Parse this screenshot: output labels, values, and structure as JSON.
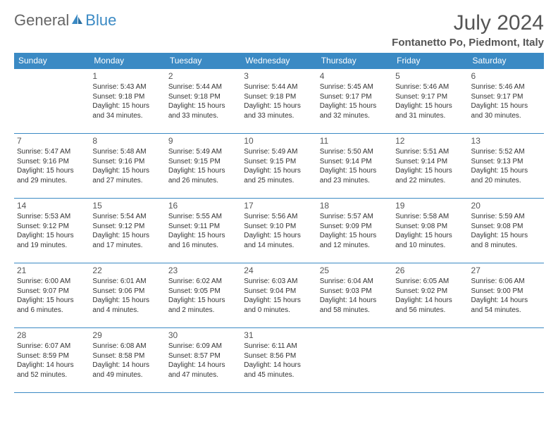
{
  "brand": {
    "part1": "General",
    "part2": "Blue"
  },
  "title": "July 2024",
  "location": "Fontanetto Po, Piedmont, Italy",
  "colors": {
    "accent": "#3b8ac4",
    "text": "#333333",
    "heading": "#555555",
    "background": "#ffffff"
  },
  "weekdays": [
    "Sunday",
    "Monday",
    "Tuesday",
    "Wednesday",
    "Thursday",
    "Friday",
    "Saturday"
  ],
  "weeks": [
    [
      null,
      {
        "d": "1",
        "sr": "Sunrise: 5:43 AM",
        "ss": "Sunset: 9:18 PM",
        "dl1": "Daylight: 15 hours",
        "dl2": "and 34 minutes."
      },
      {
        "d": "2",
        "sr": "Sunrise: 5:44 AM",
        "ss": "Sunset: 9:18 PM",
        "dl1": "Daylight: 15 hours",
        "dl2": "and 33 minutes."
      },
      {
        "d": "3",
        "sr": "Sunrise: 5:44 AM",
        "ss": "Sunset: 9:18 PM",
        "dl1": "Daylight: 15 hours",
        "dl2": "and 33 minutes."
      },
      {
        "d": "4",
        "sr": "Sunrise: 5:45 AM",
        "ss": "Sunset: 9:17 PM",
        "dl1": "Daylight: 15 hours",
        "dl2": "and 32 minutes."
      },
      {
        "d": "5",
        "sr": "Sunrise: 5:46 AM",
        "ss": "Sunset: 9:17 PM",
        "dl1": "Daylight: 15 hours",
        "dl2": "and 31 minutes."
      },
      {
        "d": "6",
        "sr": "Sunrise: 5:46 AM",
        "ss": "Sunset: 9:17 PM",
        "dl1": "Daylight: 15 hours",
        "dl2": "and 30 minutes."
      }
    ],
    [
      {
        "d": "7",
        "sr": "Sunrise: 5:47 AM",
        "ss": "Sunset: 9:16 PM",
        "dl1": "Daylight: 15 hours",
        "dl2": "and 29 minutes."
      },
      {
        "d": "8",
        "sr": "Sunrise: 5:48 AM",
        "ss": "Sunset: 9:16 PM",
        "dl1": "Daylight: 15 hours",
        "dl2": "and 27 minutes."
      },
      {
        "d": "9",
        "sr": "Sunrise: 5:49 AM",
        "ss": "Sunset: 9:15 PM",
        "dl1": "Daylight: 15 hours",
        "dl2": "and 26 minutes."
      },
      {
        "d": "10",
        "sr": "Sunrise: 5:49 AM",
        "ss": "Sunset: 9:15 PM",
        "dl1": "Daylight: 15 hours",
        "dl2": "and 25 minutes."
      },
      {
        "d": "11",
        "sr": "Sunrise: 5:50 AM",
        "ss": "Sunset: 9:14 PM",
        "dl1": "Daylight: 15 hours",
        "dl2": "and 23 minutes."
      },
      {
        "d": "12",
        "sr": "Sunrise: 5:51 AM",
        "ss": "Sunset: 9:14 PM",
        "dl1": "Daylight: 15 hours",
        "dl2": "and 22 minutes."
      },
      {
        "d": "13",
        "sr": "Sunrise: 5:52 AM",
        "ss": "Sunset: 9:13 PM",
        "dl1": "Daylight: 15 hours",
        "dl2": "and 20 minutes."
      }
    ],
    [
      {
        "d": "14",
        "sr": "Sunrise: 5:53 AM",
        "ss": "Sunset: 9:12 PM",
        "dl1": "Daylight: 15 hours",
        "dl2": "and 19 minutes."
      },
      {
        "d": "15",
        "sr": "Sunrise: 5:54 AM",
        "ss": "Sunset: 9:12 PM",
        "dl1": "Daylight: 15 hours",
        "dl2": "and 17 minutes."
      },
      {
        "d": "16",
        "sr": "Sunrise: 5:55 AM",
        "ss": "Sunset: 9:11 PM",
        "dl1": "Daylight: 15 hours",
        "dl2": "and 16 minutes."
      },
      {
        "d": "17",
        "sr": "Sunrise: 5:56 AM",
        "ss": "Sunset: 9:10 PM",
        "dl1": "Daylight: 15 hours",
        "dl2": "and 14 minutes."
      },
      {
        "d": "18",
        "sr": "Sunrise: 5:57 AM",
        "ss": "Sunset: 9:09 PM",
        "dl1": "Daylight: 15 hours",
        "dl2": "and 12 minutes."
      },
      {
        "d": "19",
        "sr": "Sunrise: 5:58 AM",
        "ss": "Sunset: 9:08 PM",
        "dl1": "Daylight: 15 hours",
        "dl2": "and 10 minutes."
      },
      {
        "d": "20",
        "sr": "Sunrise: 5:59 AM",
        "ss": "Sunset: 9:08 PM",
        "dl1": "Daylight: 15 hours",
        "dl2": "and 8 minutes."
      }
    ],
    [
      {
        "d": "21",
        "sr": "Sunrise: 6:00 AM",
        "ss": "Sunset: 9:07 PM",
        "dl1": "Daylight: 15 hours",
        "dl2": "and 6 minutes."
      },
      {
        "d": "22",
        "sr": "Sunrise: 6:01 AM",
        "ss": "Sunset: 9:06 PM",
        "dl1": "Daylight: 15 hours",
        "dl2": "and 4 minutes."
      },
      {
        "d": "23",
        "sr": "Sunrise: 6:02 AM",
        "ss": "Sunset: 9:05 PM",
        "dl1": "Daylight: 15 hours",
        "dl2": "and 2 minutes."
      },
      {
        "d": "24",
        "sr": "Sunrise: 6:03 AM",
        "ss": "Sunset: 9:04 PM",
        "dl1": "Daylight: 15 hours",
        "dl2": "and 0 minutes."
      },
      {
        "d": "25",
        "sr": "Sunrise: 6:04 AM",
        "ss": "Sunset: 9:03 PM",
        "dl1": "Daylight: 14 hours",
        "dl2": "and 58 minutes."
      },
      {
        "d": "26",
        "sr": "Sunrise: 6:05 AM",
        "ss": "Sunset: 9:02 PM",
        "dl1": "Daylight: 14 hours",
        "dl2": "and 56 minutes."
      },
      {
        "d": "27",
        "sr": "Sunrise: 6:06 AM",
        "ss": "Sunset: 9:00 PM",
        "dl1": "Daylight: 14 hours",
        "dl2": "and 54 minutes."
      }
    ],
    [
      {
        "d": "28",
        "sr": "Sunrise: 6:07 AM",
        "ss": "Sunset: 8:59 PM",
        "dl1": "Daylight: 14 hours",
        "dl2": "and 52 minutes."
      },
      {
        "d": "29",
        "sr": "Sunrise: 6:08 AM",
        "ss": "Sunset: 8:58 PM",
        "dl1": "Daylight: 14 hours",
        "dl2": "and 49 minutes."
      },
      {
        "d": "30",
        "sr": "Sunrise: 6:09 AM",
        "ss": "Sunset: 8:57 PM",
        "dl1": "Daylight: 14 hours",
        "dl2": "and 47 minutes."
      },
      {
        "d": "31",
        "sr": "Sunrise: 6:11 AM",
        "ss": "Sunset: 8:56 PM",
        "dl1": "Daylight: 14 hours",
        "dl2": "and 45 minutes."
      },
      null,
      null,
      null
    ]
  ]
}
